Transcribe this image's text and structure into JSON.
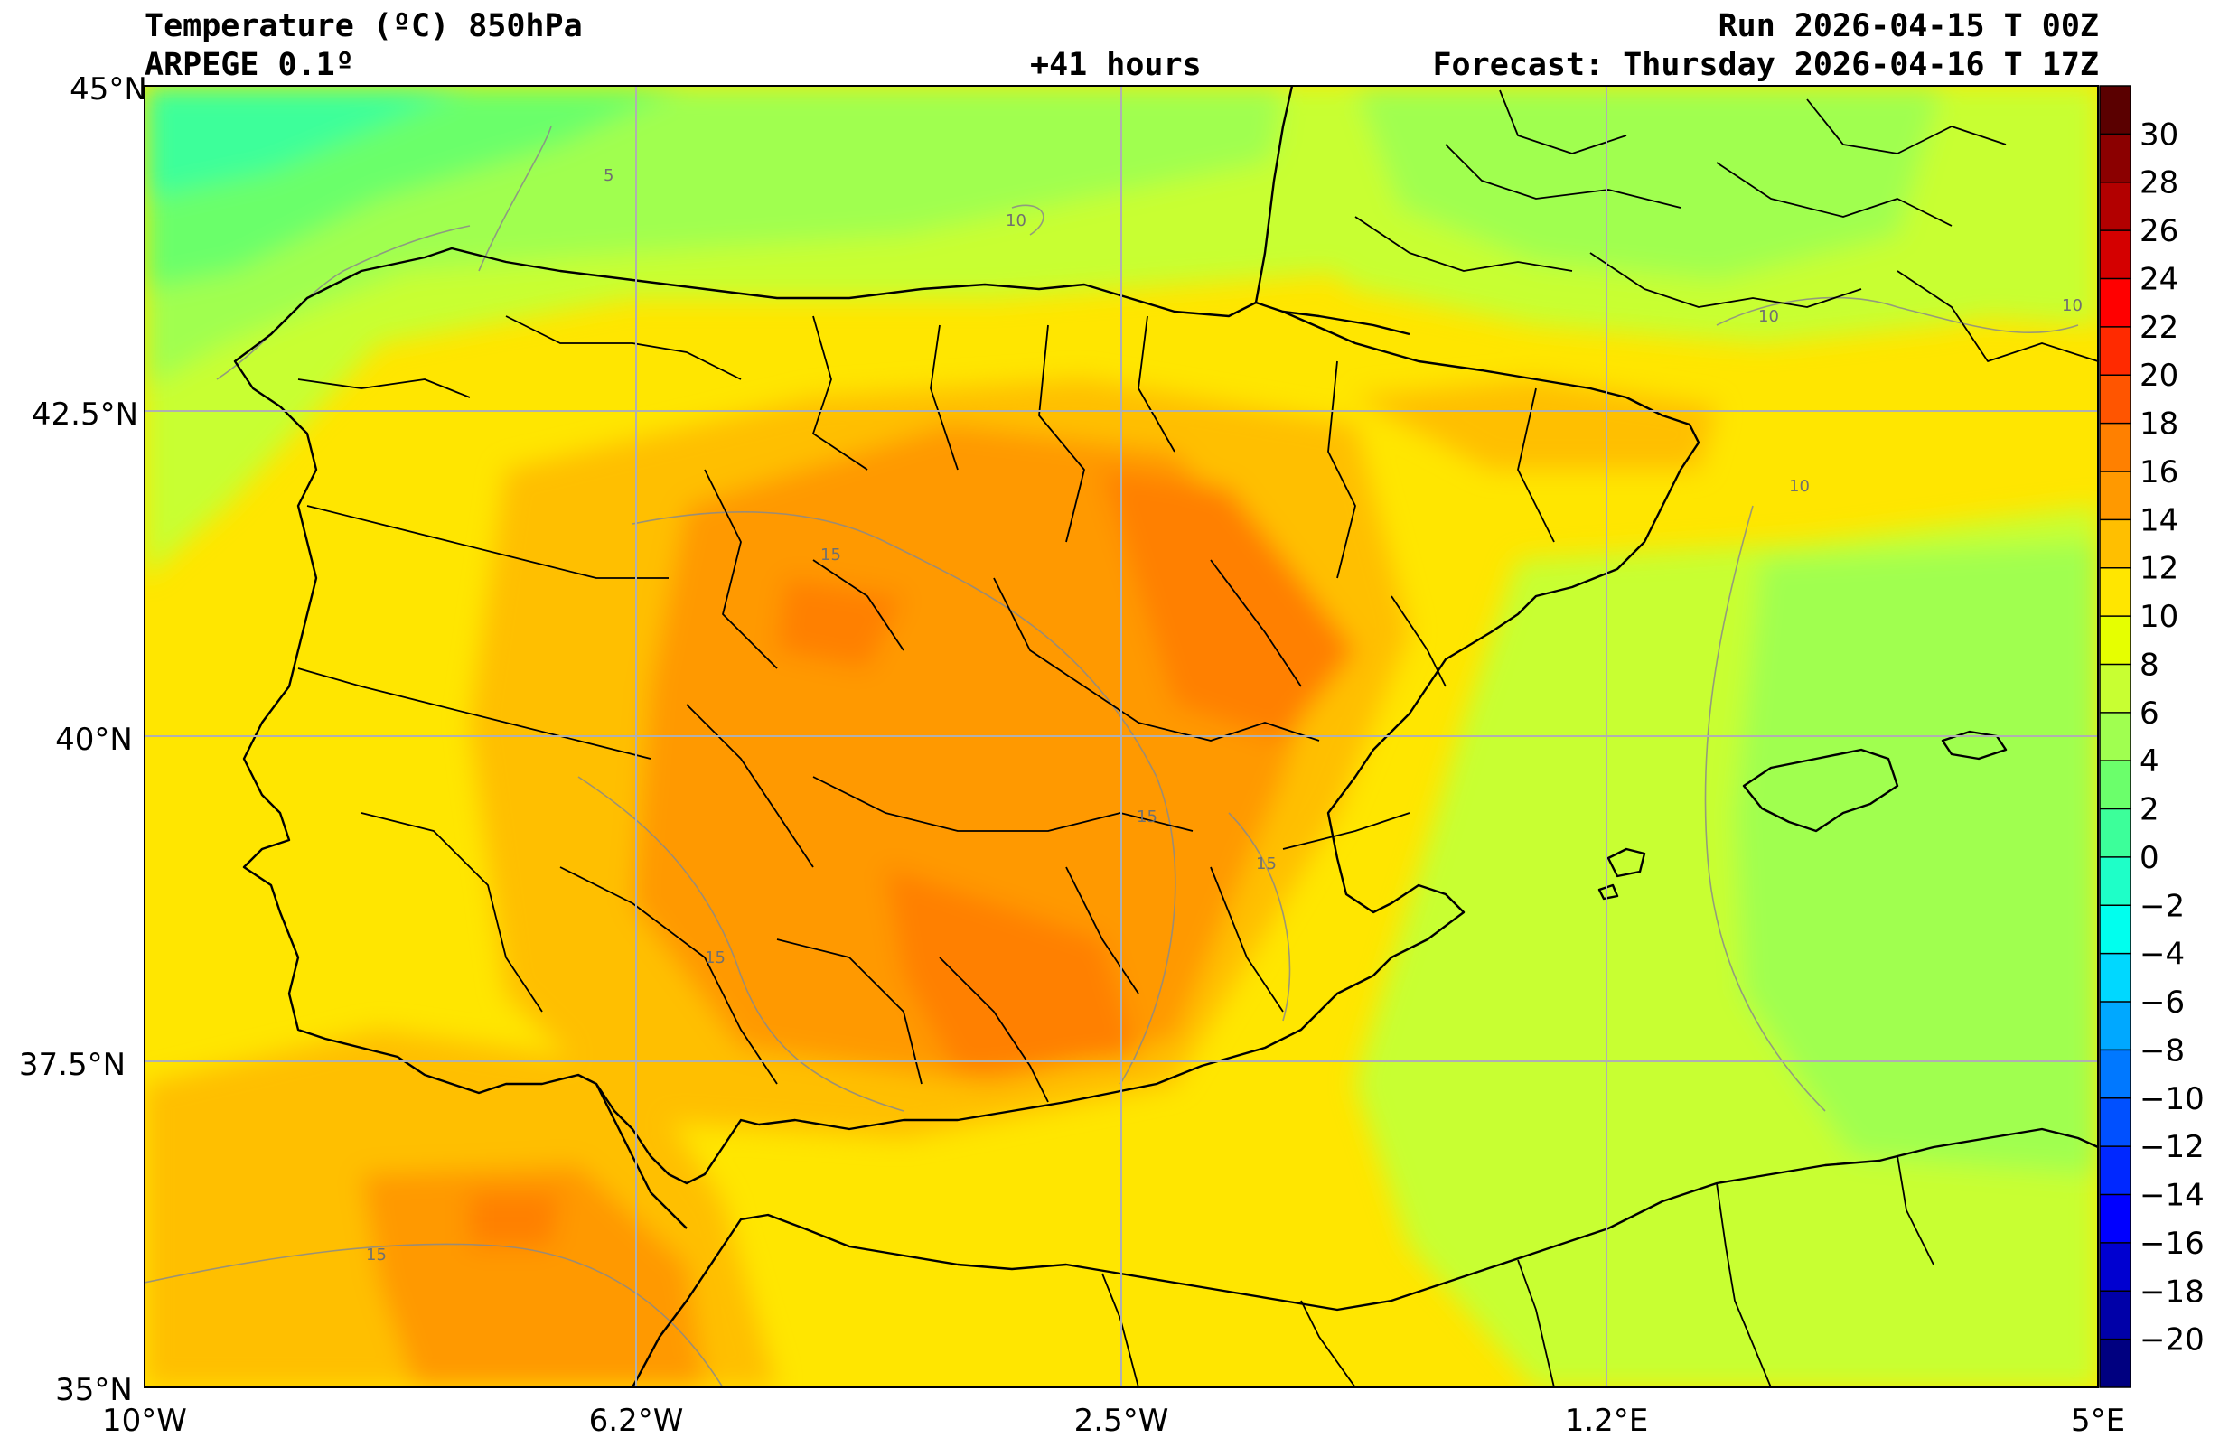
{
  "header": {
    "title": "Temperature (ºC) 850hPa",
    "model": "ARPEGE 0.1º",
    "lead": "+41 hours",
    "run": "Run 2026-04-15 T 00Z",
    "forecast": "Forecast: Thursday 2026-04-16 T 17Z"
  },
  "map": {
    "lon_ticks": [
      "10°W",
      "6.2°W",
      "2.5°W",
      "1.2°E",
      "5°E"
    ],
    "lat_ticks": [
      "45°N",
      "42.5°N",
      "40°N",
      "37.5°N",
      "35°N"
    ],
    "contour_labels": [
      "5",
      "10",
      "10",
      "10",
      "10",
      "15",
      "15",
      "15",
      "15",
      "15"
    ]
  },
  "colorbar": {
    "labels": [
      "30",
      "28",
      "26",
      "24",
      "22",
      "20",
      "18",
      "16",
      "14",
      "12",
      "10",
      "8",
      "6",
      "4",
      "2",
      "0",
      "−2",
      "−4",
      "−6",
      "−8",
      "−10",
      "−12",
      "−14",
      "−16",
      "−18",
      "−20"
    ],
    "colors": [
      "#5a0000",
      "#8b0000",
      "#b20000",
      "#d40000",
      "#ff0000",
      "#ff2a00",
      "#ff5500",
      "#ff8000",
      "#ff9900",
      "#ffbf00",
      "#ffe600",
      "#e6ff00",
      "#c8ff32",
      "#a0ff50",
      "#6bff6b",
      "#3cff9a",
      "#1effc8",
      "#00ffee",
      "#00d8ff",
      "#00a8ff",
      "#0078ff",
      "#0050ff",
      "#0028ff",
      "#0000ff",
      "#0000d0",
      "#0000a8",
      "#000080"
    ]
  }
}
